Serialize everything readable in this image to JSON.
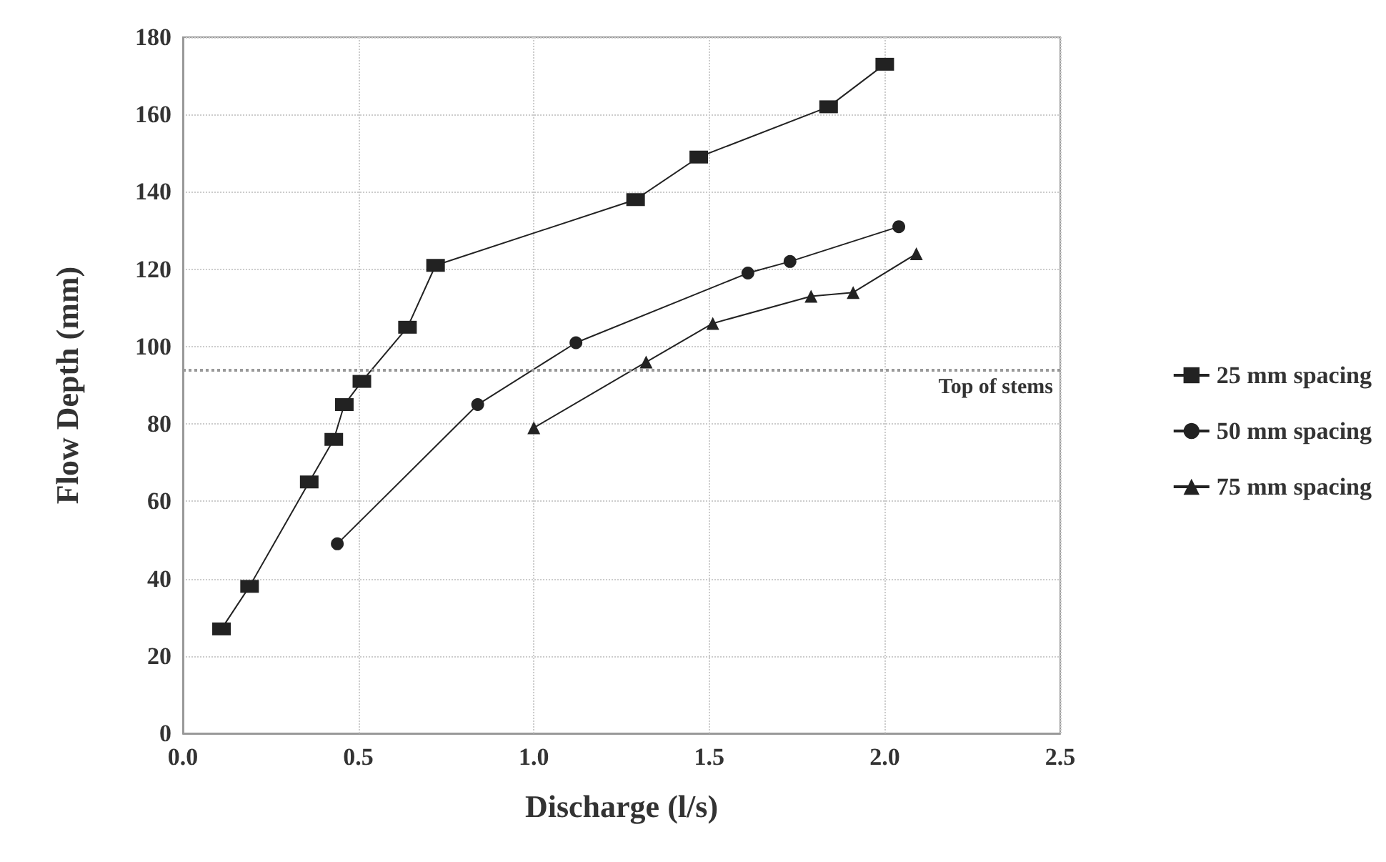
{
  "chart_data": {
    "type": "line",
    "xlabel": "Discharge (l/s)",
    "ylabel": "Flow Depth (mm)",
    "xlim": [
      0,
      2.5
    ],
    "xticks": [
      {
        "value": 0,
        "label": "0.0"
      },
      {
        "value": 0.5,
        "label": "0.5"
      },
      {
        "value": 1,
        "label": "1.0"
      },
      {
        "value": 1.5,
        "label": "1.5"
      },
      {
        "value": 2,
        "label": "2.0"
      },
      {
        "value": 2.5,
        "label": "2.5"
      }
    ],
    "ylim": [
      0,
      180
    ],
    "yticks": [
      0,
      20,
      40,
      60,
      80,
      100,
      120,
      140,
      160,
      180
    ],
    "grid": true,
    "legend": "right",
    "ref_lines": [
      {
        "axis": "y",
        "value": 94,
        "label": "Top of stems",
        "color": "#999999",
        "line_style": "dotted"
      }
    ],
    "series": [
      {
        "name": "25 mm spacing",
        "color": "#222222",
        "marker": "square",
        "x": [
          0.11,
          0.19,
          0.36,
          0.43,
          0.46,
          0.51,
          0.64,
          0.72,
          1.29,
          1.47,
          1.84,
          2.0
        ],
        "values": [
          27,
          38,
          65,
          76,
          85,
          91,
          105,
          121,
          138,
          149,
          162,
          173
        ]
      },
      {
        "name": "50 mm spacing",
        "color": "#222222",
        "marker": "circle",
        "x": [
          0.44,
          0.84,
          1.12,
          1.61,
          1.73,
          2.04
        ],
        "values": [
          49,
          85,
          101,
          119,
          122,
          131
        ]
      },
      {
        "name": "75 mm spacing",
        "color": "#222222",
        "marker": "triangle",
        "x": [
          1.0,
          1.32,
          1.51,
          1.79,
          1.91,
          2.09
        ],
        "values": [
          79,
          96,
          106,
          113,
          114,
          124
        ]
      }
    ]
  }
}
